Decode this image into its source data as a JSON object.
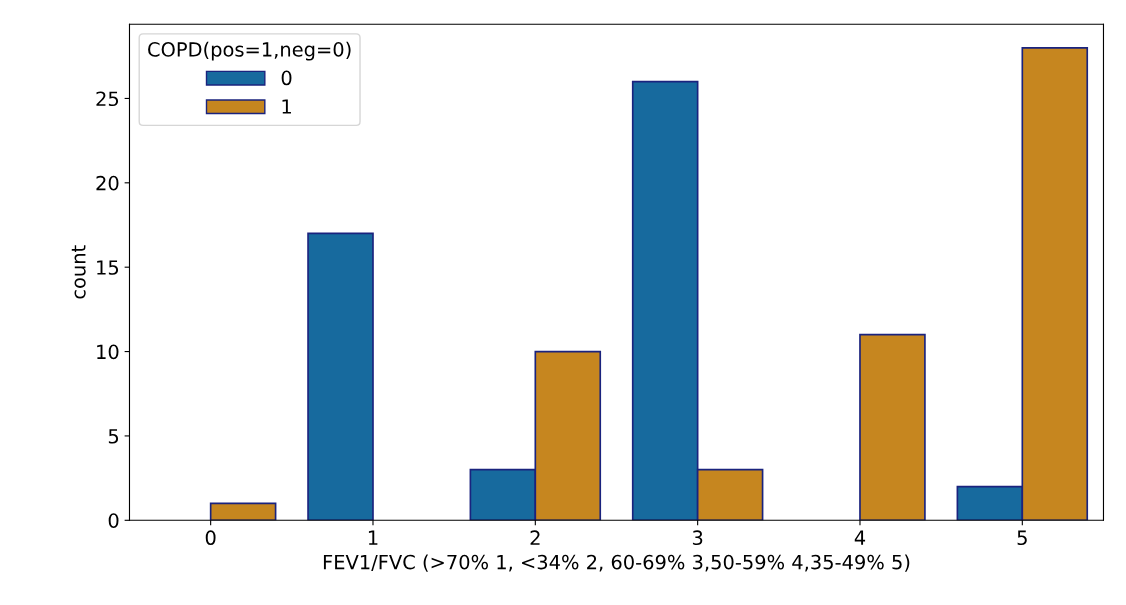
{
  "chart_data": {
    "type": "bar",
    "xlabel": "FEV1/FVC (>70% 1, <34% 2, 60-69% 3,50-59% 4,35-49% 5)",
    "ylabel": "count",
    "legend_title": "COPD(pos=1,neg=0)",
    "categories": [
      "0",
      "1",
      "2",
      "3",
      "4",
      "5"
    ],
    "series": [
      {
        "name": "0",
        "color": "#176a9e",
        "values": [
          null,
          17,
          3,
          26,
          null,
          2
        ]
      },
      {
        "name": "1",
        "color": "#c6861f",
        "values": [
          1,
          null,
          10,
          3,
          11,
          28
        ]
      }
    ],
    "ylim": [
      0,
      29.4
    ],
    "yticks": [
      0,
      5,
      10,
      15,
      20,
      25
    ],
    "grid": false,
    "legend": "top left"
  }
}
